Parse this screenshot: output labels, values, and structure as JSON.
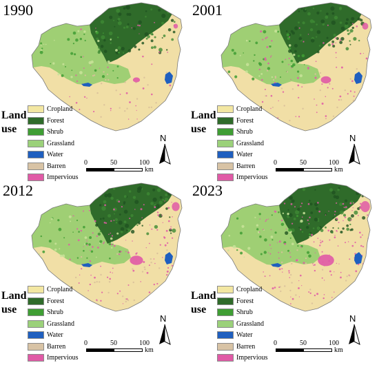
{
  "panels": [
    {
      "year": "1990",
      "impervious_level": 1
    },
    {
      "year": "2001",
      "impervious_level": 2
    },
    {
      "year": "2012",
      "impervious_level": 3
    },
    {
      "year": "2023",
      "impervious_level": 4
    }
  ],
  "legend": {
    "title_line1": "Land",
    "title_line2": "use",
    "items": [
      {
        "label": "Cropland",
        "color": "#f3e7a2"
      },
      {
        "label": "Forest",
        "color": "#2f6b2a"
      },
      {
        "label": "Shrub",
        "color": "#3f9e34"
      },
      {
        "label": "Grassland",
        "color": "#9bd17a"
      },
      {
        "label": "Water",
        "color": "#1f5fbf"
      },
      {
        "label": "Barren",
        "color": "#d8c3a5"
      },
      {
        "label": "Impervious",
        "color": "#e05aa6"
      }
    ]
  },
  "scalebar": {
    "ticks": [
      "0",
      "50",
      "100"
    ],
    "unit": "km"
  },
  "north_arrow": {
    "letter": "N"
  }
}
